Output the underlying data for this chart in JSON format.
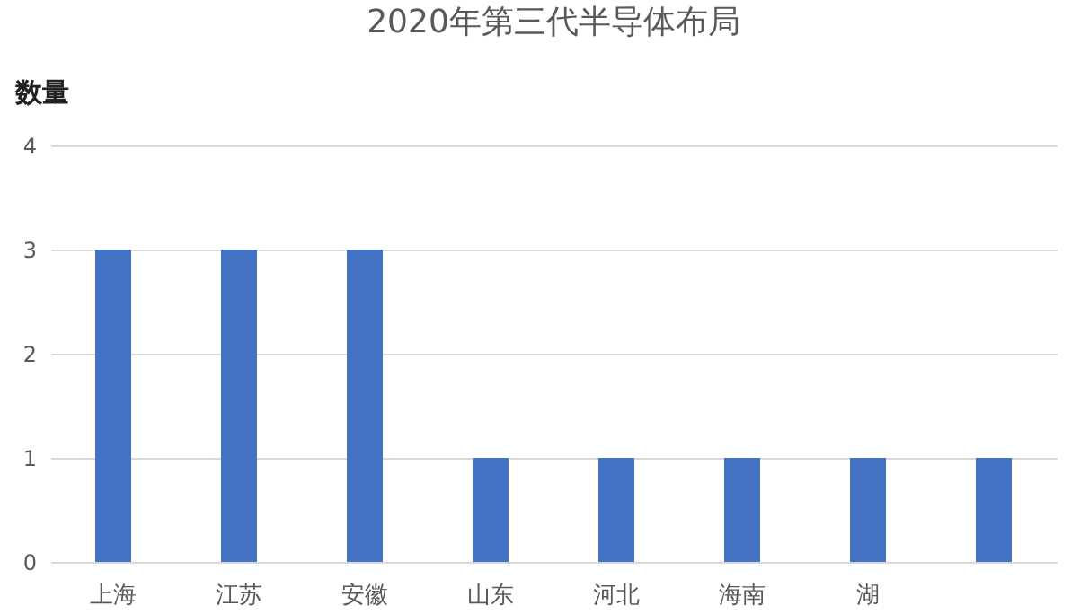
{
  "chart_data": {
    "type": "bar",
    "title": "2020年第三代半导体布局",
    "ylabel": "数量",
    "categories": [
      "上海",
      "江苏",
      "安徽",
      "山东",
      "河北",
      "海南",
      "湖",
      null
    ],
    "values": [
      3,
      3,
      3,
      1,
      1,
      1,
      1,
      1
    ],
    "color": "#4472c4",
    "ylim": [
      0,
      4
    ],
    "yticks": [
      0,
      1,
      2,
      3,
      4
    ],
    "grid": "y"
  }
}
